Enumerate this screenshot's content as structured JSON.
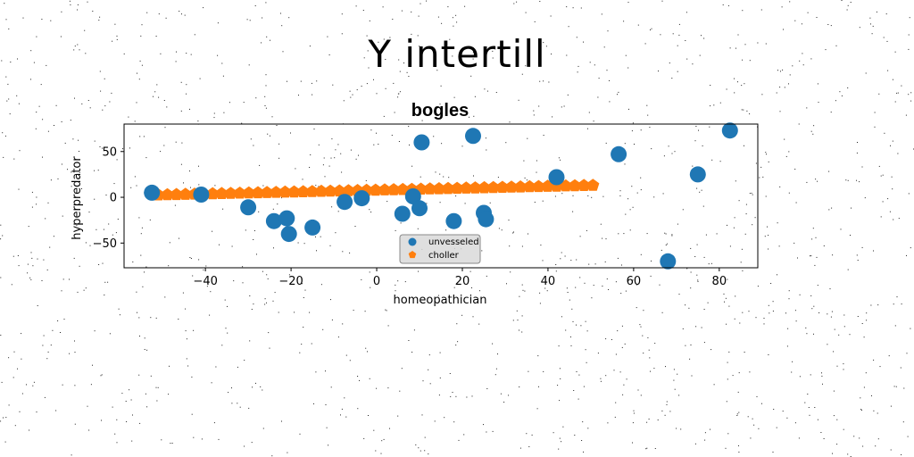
{
  "page": {
    "title": "Y intertill"
  },
  "chart_data": {
    "type": "scatter",
    "title": "bogles",
    "xlabel": "homeopathician",
    "ylabel": "hyperpredator",
    "xlim": [
      -59,
      89
    ],
    "ylim": [
      -77,
      80
    ],
    "xticks": [
      -40,
      -20,
      0,
      20,
      40,
      60,
      80
    ],
    "yticks": [
      -50,
      0,
      50
    ],
    "grid": false,
    "legend_position": "lower-center",
    "series": [
      {
        "name": "unvesseled",
        "marker": "circle",
        "color": "#1f77b4",
        "x": [
          -52.5,
          -41,
          -30,
          -24,
          -21,
          -20.5,
          -15,
          -7.5,
          -3.5,
          6,
          8.5,
          10,
          10.5,
          18,
          22.5,
          25,
          25.5,
          42,
          56.5,
          68,
          75,
          82.5
        ],
        "y": [
          5,
          3,
          -11,
          -26,
          -23,
          -40,
          -33,
          -5,
          -1,
          -18,
          1,
          -12,
          60,
          -26,
          67,
          -17,
          -24,
          22,
          47,
          -70,
          25,
          73
        ]
      },
      {
        "name": "choller",
        "marker": "pentagon",
        "color": "#ff7f0e",
        "x_start": -51,
        "x_end": 50.5,
        "count": 49,
        "y_start": 2.5,
        "y_end": 13
      }
    ]
  }
}
